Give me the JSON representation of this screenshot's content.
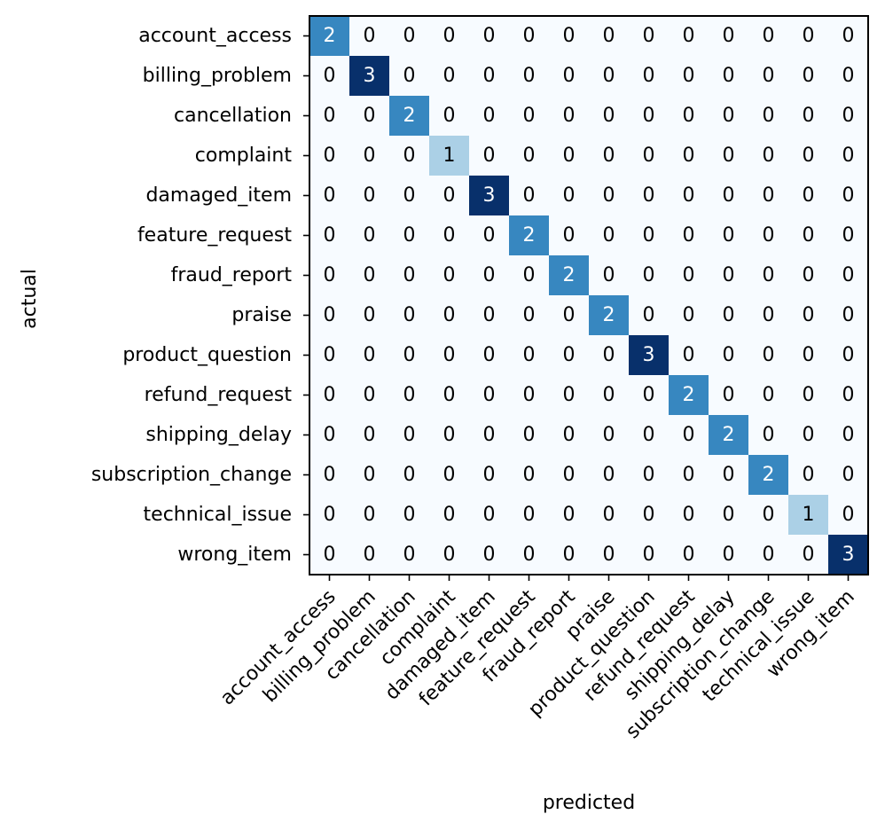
{
  "chart_data": {
    "type": "heatmap",
    "title": "",
    "xlabel": "predicted",
    "ylabel": "actual",
    "colormap": "Blues",
    "value_range": [
      0,
      3
    ],
    "grid": false,
    "x_categories": [
      "account_access",
      "billing_problem",
      "cancellation",
      "complaint",
      "damaged_item",
      "feature_request",
      "fraud_report",
      "praise",
      "product_question",
      "refund_request",
      "shipping_delay",
      "subscription_change",
      "technical_issue",
      "wrong_item"
    ],
    "y_categories": [
      "account_access",
      "billing_problem",
      "cancellation",
      "complaint",
      "damaged_item",
      "feature_request",
      "fraud_report",
      "praise",
      "product_question",
      "refund_request",
      "shipping_delay",
      "subscription_change",
      "technical_issue",
      "wrong_item"
    ],
    "values": [
      [
        2,
        0,
        0,
        0,
        0,
        0,
        0,
        0,
        0,
        0,
        0,
        0,
        0,
        0
      ],
      [
        0,
        3,
        0,
        0,
        0,
        0,
        0,
        0,
        0,
        0,
        0,
        0,
        0,
        0
      ],
      [
        0,
        0,
        2,
        0,
        0,
        0,
        0,
        0,
        0,
        0,
        0,
        0,
        0,
        0
      ],
      [
        0,
        0,
        0,
        1,
        0,
        0,
        0,
        0,
        0,
        0,
        0,
        0,
        0,
        0
      ],
      [
        0,
        0,
        0,
        0,
        3,
        0,
        0,
        0,
        0,
        0,
        0,
        0,
        0,
        0
      ],
      [
        0,
        0,
        0,
        0,
        0,
        2,
        0,
        0,
        0,
        0,
        0,
        0,
        0,
        0
      ],
      [
        0,
        0,
        0,
        0,
        0,
        0,
        2,
        0,
        0,
        0,
        0,
        0,
        0,
        0
      ],
      [
        0,
        0,
        0,
        0,
        0,
        0,
        0,
        2,
        0,
        0,
        0,
        0,
        0,
        0
      ],
      [
        0,
        0,
        0,
        0,
        0,
        0,
        0,
        0,
        3,
        0,
        0,
        0,
        0,
        0
      ],
      [
        0,
        0,
        0,
        0,
        0,
        0,
        0,
        0,
        0,
        2,
        0,
        0,
        0,
        0
      ],
      [
        0,
        0,
        0,
        0,
        0,
        0,
        0,
        0,
        0,
        0,
        2,
        0,
        0,
        0
      ],
      [
        0,
        0,
        0,
        0,
        0,
        0,
        0,
        0,
        0,
        0,
        0,
        2,
        0,
        0
      ],
      [
        0,
        0,
        0,
        0,
        0,
        0,
        0,
        0,
        0,
        0,
        0,
        0,
        1,
        0
      ],
      [
        0,
        0,
        0,
        0,
        0,
        0,
        0,
        0,
        0,
        0,
        0,
        0,
        0,
        3
      ]
    ]
  }
}
